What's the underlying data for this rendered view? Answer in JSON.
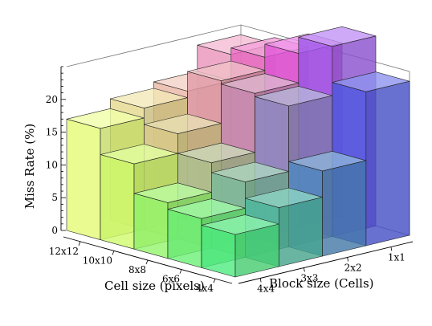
{
  "chart_data": {
    "type": "bar3d",
    "title": "",
    "zlabel": "Miss Rate (%)",
    "xlabel": "Cell size (pixels)",
    "ylabel": "Block size (Cells)",
    "zlim": [
      0,
      25
    ],
    "z_ticks": [
      0,
      5,
      10,
      15,
      20
    ],
    "x_categories": [
      "12x12",
      "10x10",
      "8x8",
      "6x6",
      "4x4"
    ],
    "y_categories": [
      "4x4",
      "3x3",
      "2x2",
      "1x1"
    ],
    "values": [
      [
        17,
        18.5,
        19.5,
        23.5
      ],
      [
        13,
        16,
        22.5,
        24.5
      ],
      [
        8.5,
        13,
        22,
        26.5
      ],
      [
        7.5,
        11.5,
        21.5,
        29
      ],
      [
        6.5,
        9,
        13,
        23.5
      ]
    ]
  }
}
